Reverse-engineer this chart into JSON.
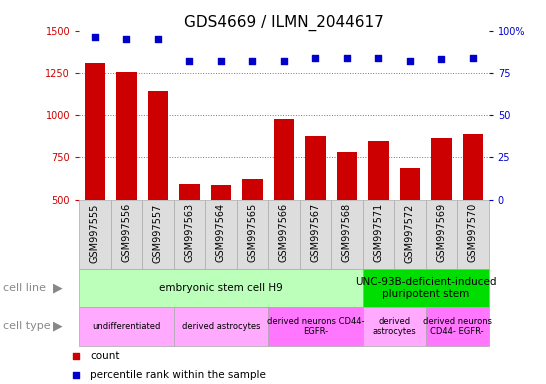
{
  "title": "GDS4669 / ILMN_2044617",
  "samples": [
    "GSM997555",
    "GSM997556",
    "GSM997557",
    "GSM997563",
    "GSM997564",
    "GSM997565",
    "GSM997566",
    "GSM997567",
    "GSM997568",
    "GSM997571",
    "GSM997572",
    "GSM997569",
    "GSM997570"
  ],
  "counts": [
    1310,
    1255,
    1145,
    590,
    585,
    620,
    980,
    875,
    785,
    850,
    685,
    865,
    890
  ],
  "percentile": [
    96,
    95,
    95,
    82,
    82,
    82,
    82,
    84,
    84,
    84,
    82,
    83,
    84
  ],
  "ylim_left": [
    500,
    1500
  ],
  "ylim_right": [
    0,
    100
  ],
  "yticks_left": [
    500,
    750,
    1000,
    1250,
    1500
  ],
  "yticks_right": [
    0,
    25,
    50,
    75,
    100
  ],
  "bar_color": "#cc0000",
  "dot_color": "#0000cc",
  "cell_line_groups": [
    {
      "label": "embryonic stem cell H9",
      "start": 0,
      "end": 9,
      "color": "#bbffbb"
    },
    {
      "label": "UNC-93B-deficient-induced\npluripotent stem",
      "start": 9,
      "end": 13,
      "color": "#00dd00"
    }
  ],
  "cell_type_groups": [
    {
      "label": "undifferentiated",
      "start": 0,
      "end": 3,
      "color": "#ffaaff"
    },
    {
      "label": "derived astrocytes",
      "start": 3,
      "end": 6,
      "color": "#ffaaff"
    },
    {
      "label": "derived neurons CD44-\nEGFR-",
      "start": 6,
      "end": 9,
      "color": "#ff77ff"
    },
    {
      "label": "derived\nastrocytes",
      "start": 9,
      "end": 11,
      "color": "#ffaaff"
    },
    {
      "label": "derived neurons\nCD44- EGFR-",
      "start": 11,
      "end": 13,
      "color": "#ff77ff"
    }
  ],
  "tick_bg_color": "#dddddd",
  "tick_border_color": "#aaaaaa",
  "grid_color": "#777777",
  "title_fontsize": 11,
  "tick_fontsize": 7,
  "annot_fontsize": 7.5,
  "row_label_fontsize": 8,
  "legend_fontsize": 7.5
}
